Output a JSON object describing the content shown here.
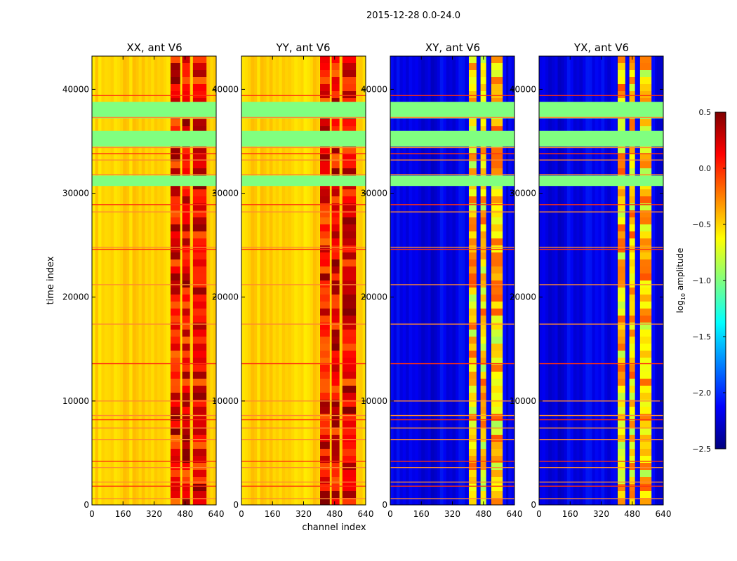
{
  "figure": {
    "suptitle": "2015-12-28 0.0-24.0"
  },
  "chart_data": [
    {
      "type": "heatmap",
      "title": "XX, ant V6",
      "xlabel": "",
      "ylabel": "time index",
      "xlim": [
        0,
        640
      ],
      "ylim": [
        0,
        43200
      ],
      "xticks": [
        0,
        160,
        320,
        480,
        640
      ],
      "yticks": [
        0,
        10000,
        20000,
        30000,
        40000
      ],
      "xtick_labels": [
        "0",
        "160",
        "320",
        "480",
        "640"
      ],
      "ytick_labels": [
        "0",
        "10000",
        "20000",
        "30000",
        "40000"
      ],
      "base_log10_amplitude": -0.5,
      "hot_channel_bands": [
        [
          405,
          455
        ],
        [
          465,
          505
        ],
        [
          520,
          590
        ]
      ],
      "flagged_time_ranges": [
        [
          37200,
          38800
        ],
        [
          34500,
          36000
        ],
        [
          30700,
          31700
        ]
      ],
      "flag_lines_time": [
        39400,
        37300,
        34400,
        33800,
        33200,
        31800,
        28900,
        28200,
        24800,
        24600,
        21200,
        17400,
        13600,
        10000,
        8600,
        8200,
        7400,
        6300,
        4200,
        3600,
        2200,
        1800,
        600
      ]
    },
    {
      "type": "heatmap",
      "title": "YY, ant V6",
      "xlabel": "channel index",
      "ylabel": "",
      "xlim": [
        0,
        640
      ],
      "ylim": [
        0,
        43200
      ],
      "xticks": [
        0,
        160,
        320,
        480,
        640
      ],
      "yticks": [
        0,
        10000,
        20000,
        30000,
        40000
      ],
      "xtick_labels": [
        "0",
        "160",
        "320",
        "480",
        "640"
      ],
      "ytick_labels": [
        "0",
        "10000",
        "20000",
        "30000",
        "40000"
      ],
      "base_log10_amplitude": -0.5,
      "hot_channel_bands": [
        [
          405,
          455
        ],
        [
          465,
          505
        ],
        [
          520,
          590
        ]
      ],
      "flagged_time_ranges": [
        [
          37200,
          38800
        ],
        [
          34500,
          36000
        ],
        [
          30700,
          31700
        ]
      ],
      "flag_lines_time": [
        39400,
        37300,
        34400,
        33800,
        33200,
        31800,
        28900,
        28200,
        24800,
        24600,
        21200,
        17400,
        13600,
        10000,
        8600,
        8200,
        7400,
        6300,
        4200,
        3600,
        2200,
        1800,
        600
      ]
    },
    {
      "type": "heatmap",
      "title": "XY, ant V6",
      "xlabel": "",
      "ylabel": "",
      "xlim": [
        0,
        640
      ],
      "ylim": [
        0,
        43200
      ],
      "xticks": [
        0,
        160,
        320,
        480,
        640
      ],
      "yticks": [
        0,
        10000,
        20000,
        30000,
        40000
      ],
      "xtick_labels": [
        "0",
        "160",
        "320",
        "480",
        "640"
      ],
      "ytick_labels": [
        "0",
        "10000",
        "20000",
        "30000",
        "40000"
      ],
      "base_log10_amplitude": -2.2,
      "hot_channel_bands": [
        [
          405,
          455
        ],
        [
          465,
          505
        ],
        [
          520,
          590
        ]
      ],
      "flagged_time_ranges": [
        [
          37200,
          38800
        ],
        [
          34500,
          36000
        ],
        [
          30700,
          31700
        ]
      ],
      "flag_lines_time": [
        39400,
        37300,
        34400,
        33800,
        33200,
        31800,
        28900,
        28200,
        24800,
        24600,
        21200,
        17400,
        13600,
        10000,
        8600,
        8200,
        7400,
        6300,
        4200,
        3600,
        2200,
        1800,
        600
      ]
    },
    {
      "type": "heatmap",
      "title": "YX, ant V6",
      "xlabel": "",
      "ylabel": "",
      "xlim": [
        0,
        640
      ],
      "ylim": [
        0,
        43200
      ],
      "xticks": [
        0,
        160,
        320,
        480,
        640
      ],
      "yticks": [
        0,
        10000,
        20000,
        30000,
        40000
      ],
      "xtick_labels": [
        "0",
        "160",
        "320",
        "480",
        "640"
      ],
      "ytick_labels": [
        "0",
        "10000",
        "20000",
        "30000",
        "40000"
      ],
      "base_log10_amplitude": -2.2,
      "hot_channel_bands": [
        [
          405,
          455
        ],
        [
          465,
          505
        ],
        [
          520,
          590
        ]
      ],
      "flagged_time_ranges": [
        [
          37200,
          38800
        ],
        [
          34500,
          36000
        ],
        [
          30700,
          31700
        ]
      ],
      "flag_lines_time": [
        39400,
        37300,
        34400,
        33800,
        33200,
        31800,
        28900,
        28200,
        24800,
        24600,
        21200,
        17400,
        13600,
        10000,
        8600,
        8200,
        7400,
        6300,
        4200,
        3600,
        2200,
        1800,
        600
      ]
    }
  ],
  "colorbar": {
    "label": "log",
    "label_sub": "10",
    "label_suffix": " amplitude",
    "vmin": -2.5,
    "vmax": 0.5,
    "colormap": "jet",
    "ticks": [
      0.5,
      0.0,
      -0.5,
      -1.0,
      -1.5,
      -2.0,
      -2.5
    ],
    "tick_labels": [
      "0.5",
      "0.0",
      "−0.5",
      "−1.0",
      "−1.5",
      "−2.0",
      "−2.5"
    ]
  }
}
